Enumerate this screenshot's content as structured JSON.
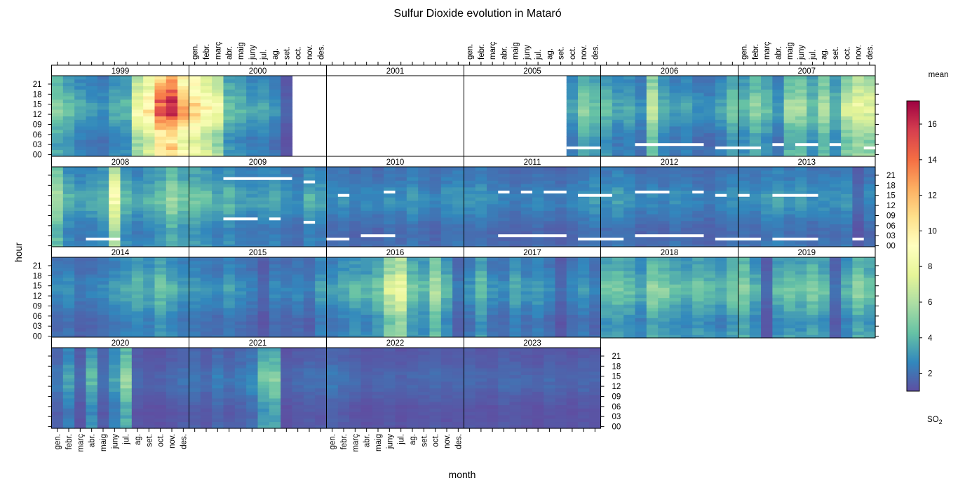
{
  "chart_data": {
    "type": "heatmap",
    "title": "Sulfur Dioxide evolution in Mataró",
    "xlabel": "month",
    "ylabel": "hour",
    "month_labels": [
      "gen.",
      "febr.",
      "març",
      "abr.",
      "maig",
      "juny",
      "jul.",
      "ag.",
      "set.",
      "oct.",
      "nov.",
      "des."
    ],
    "hour_ticks": [
      "00",
      "03",
      "06",
      "09",
      "12",
      "15",
      "18",
      "21"
    ],
    "panels": [
      "1999",
      "2000",
      "2001",
      "2005",
      "2006",
      "2007",
      "2008",
      "2009",
      "2010",
      "2011",
      "2012",
      "2013",
      "2014",
      "2015",
      "2016",
      "2017",
      "2018",
      "2019",
      "2020",
      "2021",
      "2022",
      "2023"
    ],
    "colorbar": {
      "title": "mean",
      "label_main": "SO",
      "label_sub": "2",
      "range": [
        1,
        17.3
      ],
      "ticks": [
        2,
        4,
        6,
        8,
        10,
        12,
        14,
        16
      ],
      "palette": [
        "#5E4FA2",
        "#3288BD",
        "#66C2A5",
        "#ABDDA4",
        "#E6F598",
        "#FFFFBF",
        "#FEE08B",
        "#FDAE61",
        "#F46D43",
        "#D53E4F",
        "#9E0142"
      ]
    },
    "monthly_mean_so2": {
      "1999": [
        4.5,
        3.8,
        3.2,
        2.8,
        2.6,
        3.4,
        3.6,
        7.5,
        9.0,
        13.0,
        14.5,
        11.0
      ],
      "2000": [
        10.0,
        8.5,
        7.2,
        4.0,
        3.5,
        3.0,
        3.2,
        2.6,
        1.4,
        null,
        null,
        null
      ],
      "2001": [
        null,
        null,
        null,
        null,
        null,
        null,
        null,
        null,
        null,
        null,
        null,
        null
      ],
      "2005": [
        null,
        null,
        null,
        null,
        null,
        null,
        null,
        null,
        null,
        3.0,
        4.6,
        4.0
      ],
      "2006": [
        3.8,
        3.0,
        3.3,
        2.6,
        6.0,
        3.4,
        2.8,
        3.2,
        2.6,
        2.4,
        3.0,
        4.2
      ],
      "2007": [
        3.6,
        4.6,
        3.8,
        2.8,
        5.0,
        5.2,
        3.8,
        5.4,
        3.6,
        6.2,
        7.2,
        6.6
      ],
      "2008": [
        5.4,
        3.4,
        3.0,
        3.2,
        3.6,
        7.6,
        3.6,
        3.0,
        3.4,
        3.8,
        5.0,
        4.0
      ],
      "2009": [
        4.0,
        3.8,
        3.2,
        3.6,
        3.0,
        2.8,
        3.0,
        3.2,
        2.6,
        2.4,
        3.4,
        3.0
      ],
      "2010": [
        2.4,
        2.6,
        2.2,
        2.4,
        2.2,
        2.6,
        2.4,
        2.8,
        2.4,
        2.2,
        2.6,
        2.8
      ],
      "2011": [
        2.6,
        2.8,
        2.4,
        2.2,
        2.0,
        2.2,
        2.4,
        2.2,
        2.0,
        2.4,
        2.6,
        2.8
      ],
      "2012": [
        2.6,
        3.0,
        2.6,
        2.2,
        2.4,
        2.2,
        2.6,
        2.4,
        2.2,
        2.0,
        2.4,
        2.6
      ],
      "2013": [
        2.6,
        2.4,
        2.8,
        3.0,
        2.6,
        2.8,
        2.4,
        2.6,
        2.6,
        2.8,
        1.6,
        2.4
      ],
      "2014": [
        2.4,
        2.6,
        2.0,
        2.2,
        2.4,
        2.8,
        3.2,
        3.6,
        3.2,
        4.0,
        3.4,
        2.8
      ],
      "2015": [
        2.8,
        2.6,
        2.4,
        3.0,
        2.6,
        2.2,
        1.6,
        2.4,
        2.2,
        2.4,
        2.0,
        3.0
      ],
      "2016": [
        2.8,
        3.2,
        3.6,
        3.4,
        4.0,
        6.2,
        7.2,
        4.2,
        3.6,
        5.4,
        3.6,
        2.0
      ],
      "2017": [
        2.6,
        4.0,
        2.6,
        2.4,
        3.4,
        2.6,
        3.0,
        2.4,
        1.6,
        2.4,
        2.8,
        2.2
      ],
      "2018": [
        4.0,
        4.2,
        3.8,
        3.2,
        4.8,
        4.4,
        3.8,
        3.4,
        4.0,
        3.6,
        3.2,
        4.2
      ],
      "2019": [
        4.6,
        3.4,
        1.6,
        3.6,
        4.2,
        3.8,
        4.4,
        3.8,
        1.8,
        3.4,
        4.6,
        4.0
      ],
      "2020": [
        2.0,
        3.0,
        1.6,
        3.6,
        1.8,
        3.0,
        4.8,
        1.6,
        1.4,
        1.4,
        1.6,
        1.8
      ],
      "2021": [
        2.0,
        1.6,
        2.2,
        1.8,
        2.0,
        2.4,
        4.0,
        4.4,
        1.4,
        1.6,
        1.8,
        1.7
      ],
      "2022": [
        2.0,
        1.8,
        1.6,
        1.4,
        1.5,
        1.6,
        1.4,
        1.5,
        1.6,
        1.7,
        1.5,
        1.6
      ],
      "2023": [
        1.6,
        1.5,
        1.4,
        1.7,
        1.6,
        1.5,
        1.4,
        1.6,
        1.5,
        1.4,
        1.6,
        1.5
      ]
    },
    "missing_data_segments": [
      {
        "panel": "2005",
        "hour": 2,
        "months": [
          10,
          12
        ]
      },
      {
        "panel": "2006",
        "hour": 3,
        "months": [
          4,
          9
        ]
      },
      {
        "panel": "2006",
        "hour": 2,
        "months": [
          11,
          12
        ]
      },
      {
        "panel": "2007",
        "hour": 2,
        "months": [
          1,
          2
        ]
      },
      {
        "panel": "2007",
        "hour": 3,
        "months": [
          4,
          4
        ]
      },
      {
        "panel": "2007",
        "hour": 3,
        "months": [
          6,
          7
        ]
      },
      {
        "panel": "2007",
        "hour": 3,
        "months": [
          9,
          9
        ]
      },
      {
        "panel": "2007",
        "hour": 2,
        "months": [
          12,
          12
        ]
      },
      {
        "panel": "2008",
        "hour": 2,
        "months": [
          4,
          6
        ]
      },
      {
        "panel": "2009",
        "hour": 20,
        "months": [
          4,
          9
        ]
      },
      {
        "panel": "2009",
        "hour": 19,
        "months": [
          11,
          11
        ]
      },
      {
        "panel": "2009",
        "hour": 8,
        "months": [
          4,
          6
        ]
      },
      {
        "panel": "2009",
        "hour": 8,
        "months": [
          8,
          8
        ]
      },
      {
        "panel": "2009",
        "hour": 7,
        "months": [
          11,
          11
        ]
      },
      {
        "panel": "2010",
        "hour": 2,
        "months": [
          1,
          2
        ]
      },
      {
        "panel": "2010",
        "hour": 3,
        "months": [
          4,
          6
        ]
      },
      {
        "panel": "2010",
        "hour": 15,
        "months": [
          2,
          2
        ]
      },
      {
        "panel": "2010",
        "hour": 16,
        "months": [
          6,
          6
        ]
      },
      {
        "panel": "2011",
        "hour": 16,
        "months": [
          4,
          4
        ]
      },
      {
        "panel": "2011",
        "hour": 16,
        "months": [
          6,
          6
        ]
      },
      {
        "panel": "2011",
        "hour": 16,
        "months": [
          8,
          9
        ]
      },
      {
        "panel": "2011",
        "hour": 15,
        "months": [
          11,
          12
        ]
      },
      {
        "panel": "2011",
        "hour": 3,
        "months": [
          4,
          9
        ]
      },
      {
        "panel": "2011",
        "hour": 2,
        "months": [
          11,
          12
        ]
      },
      {
        "panel": "2012",
        "hour": 15,
        "months": [
          1,
          1
        ]
      },
      {
        "panel": "2012",
        "hour": 16,
        "months": [
          4,
          6
        ]
      },
      {
        "panel": "2012",
        "hour": 16,
        "months": [
          9,
          9
        ]
      },
      {
        "panel": "2012",
        "hour": 15,
        "months": [
          11,
          11
        ]
      },
      {
        "panel": "2012",
        "hour": 2,
        "months": [
          1,
          2
        ]
      },
      {
        "panel": "2012",
        "hour": 3,
        "months": [
          4,
          9
        ]
      },
      {
        "panel": "2012",
        "hour": 2,
        "months": [
          11,
          12
        ]
      },
      {
        "panel": "2013",
        "hour": 15,
        "months": [
          1,
          1
        ]
      },
      {
        "panel": "2013",
        "hour": 15,
        "months": [
          4,
          6
        ]
      },
      {
        "panel": "2013",
        "hour": 15,
        "months": [
          7,
          7
        ]
      },
      {
        "panel": "2013",
        "hour": 2,
        "months": [
          1,
          2
        ]
      },
      {
        "panel": "2013",
        "hour": 2,
        "months": [
          4,
          7
        ]
      },
      {
        "panel": "2013",
        "hour": 2,
        "months": [
          11,
          11
        ]
      }
    ]
  }
}
